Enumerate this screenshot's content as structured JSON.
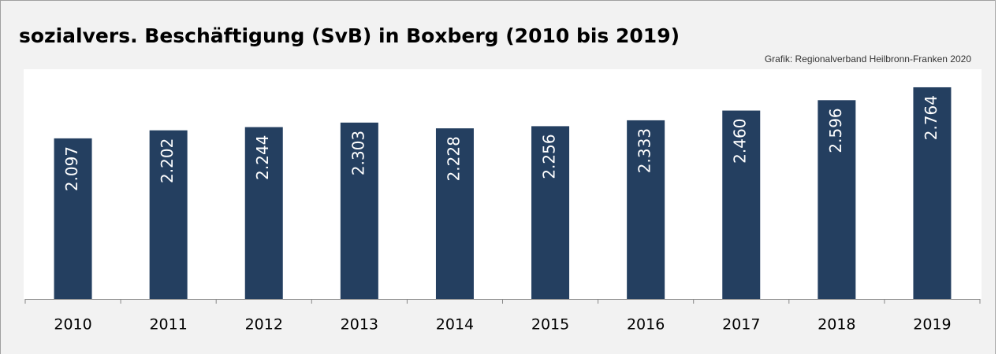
{
  "chart_data": {
    "type": "bar",
    "title": "sozialvers. Beschäftigung (SvB) in Boxberg (2010 bis 2019)",
    "source": "Grafik: Regionalverband Heilbronn-Franken 2020",
    "categories": [
      "2010",
      "2011",
      "2012",
      "2013",
      "2014",
      "2015",
      "2016",
      "2017",
      "2018",
      "2019"
    ],
    "values": [
      2097,
      2202,
      2244,
      2303,
      2228,
      2256,
      2333,
      2460,
      2596,
      2764
    ],
    "value_labels": [
      "2.097",
      "2.202",
      "2.244",
      "2.303",
      "2.228",
      "2.256",
      "2.333",
      "2.460",
      "2.596",
      "2.764"
    ],
    "color": "#243f60",
    "ylim": [
      0,
      3000
    ]
  }
}
